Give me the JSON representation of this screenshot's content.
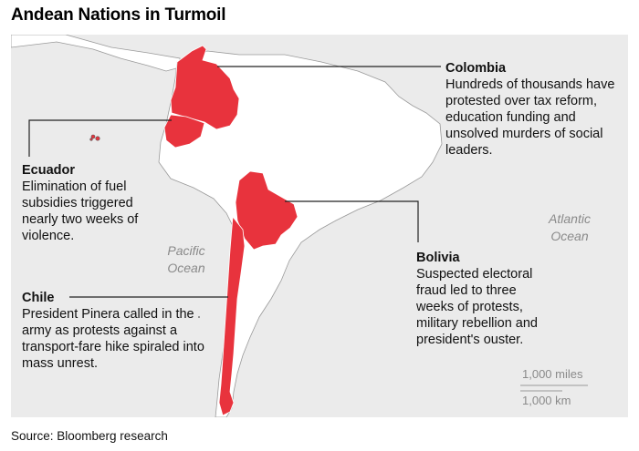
{
  "title": "Andean Nations in Turmoil",
  "colors": {
    "highlight": "#e8333d",
    "land": "#ffffff",
    "water": "#ebebeb",
    "border": "#9a9a9a",
    "leader_line": "#222222"
  },
  "countries": [
    {
      "name": "Colombia",
      "description": "Hundreds of thousands have protested over tax reform, education funding and unsolved murders of social leaders."
    },
    {
      "name": "Ecuador",
      "description": "Elimination of fuel subsidies triggered nearly two weeks of violence."
    },
    {
      "name": "Bolivia",
      "description": "Suspected electoral fraud led to three weeks of protests, military rebellion and president's ouster."
    },
    {
      "name": "Chile",
      "description": "President Pinera called in the army as protests against a transport-fare hike spiraled into mass unrest."
    }
  ],
  "oceans": {
    "pacific": [
      "Pacific",
      "Ocean"
    ],
    "atlantic": [
      "Atlantic",
      "Ocean"
    ]
  },
  "scale": {
    "miles": "1,000 miles",
    "km": "1,000 km"
  },
  "source": "Source: Bloomberg research"
}
